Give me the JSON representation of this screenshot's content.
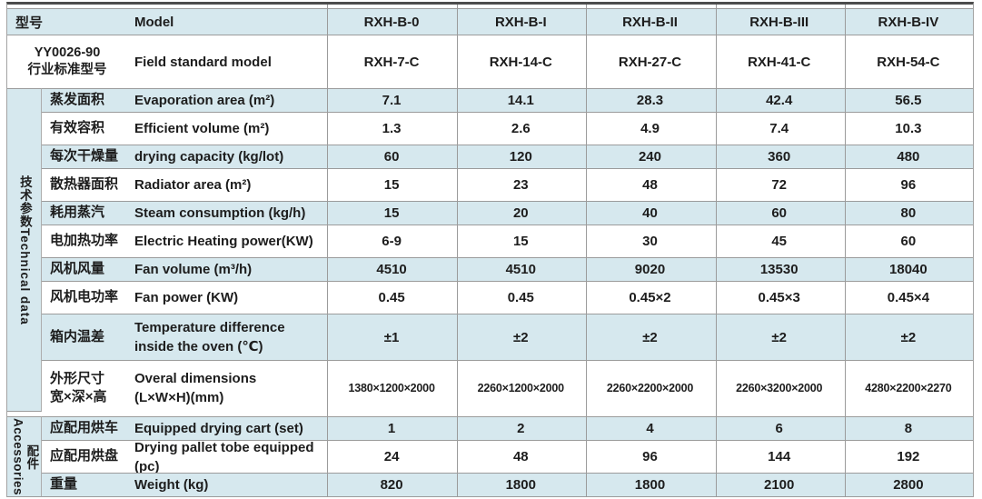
{
  "header": {
    "model_cn": "型号",
    "model_en": "Model",
    "standard_cn_line1": "YY0026-90",
    "standard_cn_line2": "行业标准型号",
    "standard_en": "Field standard model",
    "models": [
      "RXH-B-0",
      "RXH-B-I",
      "RXH-B-II",
      "RXH-B-III",
      "RXH-B-IV"
    ],
    "standard_models": [
      "RXH-7-C",
      "RXH-14-C",
      "RXH-27-C",
      "RXH-41-C",
      "RXH-54-C"
    ]
  },
  "groups": {
    "technical": {
      "cn": "技术参数",
      "en": "Technical data"
    },
    "accessories": {
      "cn": "配件",
      "en": "Accessories"
    }
  },
  "rows": [
    {
      "cn": "蒸发面积",
      "en": "Evaporation area (m²)",
      "values": [
        "7.1",
        "14.1",
        "28.3",
        "42.4",
        "56.5"
      ]
    },
    {
      "cn": "有效容积",
      "en": "Efficient volume (m²)",
      "values": [
        "1.3",
        "2.6",
        "4.9",
        "7.4",
        "10.3"
      ]
    },
    {
      "cn": "每次干燥量",
      "en": "drying capacity (kg/lot)",
      "values": [
        "60",
        "120",
        "240",
        "360",
        "480"
      ]
    },
    {
      "cn": "散热器面积",
      "en": "Radiator area (m²)",
      "values": [
        "15",
        "23",
        "48",
        "72",
        "96"
      ]
    },
    {
      "cn": "耗用蒸汽",
      "en": "Steam consumption (kg/h)",
      "values": [
        "15",
        "20",
        "40",
        "60",
        "80"
      ]
    },
    {
      "cn": "电加热功率",
      "en": "Electric Heating power(KW)",
      "values": [
        "6-9",
        "15",
        "30",
        "45",
        "60"
      ]
    },
    {
      "cn": "风机风量",
      "en": "Fan volume (m³/h)",
      "values": [
        "4510",
        "4510",
        "9020",
        "13530",
        "18040"
      ]
    },
    {
      "cn": "风机电功率",
      "en": "Fan power (KW)",
      "values": [
        "0.45",
        "0.45",
        "0.45×2",
        "0.45×3",
        "0.45×4"
      ]
    },
    {
      "cn": "箱内温差",
      "en": "Temperature difference",
      "en2": "inside the oven (℃)",
      "values": [
        "±1",
        "±2",
        "±2",
        "±2",
        "±2"
      ]
    },
    {
      "cn": "外形尺寸",
      "cn2": "宽×深×高",
      "en": "Overal dimensions",
      "en2": "(L×W×H)(mm)",
      "values": [
        "1380×1200×2000",
        "2260×1200×2000",
        "2260×2200×2000",
        "2260×3200×2000",
        "4280×2200×2270"
      ]
    },
    {
      "cn": "应配用烘车",
      "en": "Equipped drying cart (set)",
      "values": [
        "1",
        "2",
        "4",
        "6",
        "8"
      ]
    },
    {
      "cn": "应配用烘盘",
      "en": "Drying pallet tobe equipped (pc)",
      "values": [
        "24",
        "48",
        "96",
        "144",
        "192"
      ]
    },
    {
      "cn": "重量",
      "en": "Weight (kg)",
      "values": [
        "820",
        "1800",
        "1800",
        "2100",
        "2800"
      ]
    }
  ],
  "colors": {
    "band_blue": "#d6e8ee",
    "grid_line": "#9b9b9b",
    "top_border": "#4c4c4c",
    "text": "#1d1d1d"
  }
}
